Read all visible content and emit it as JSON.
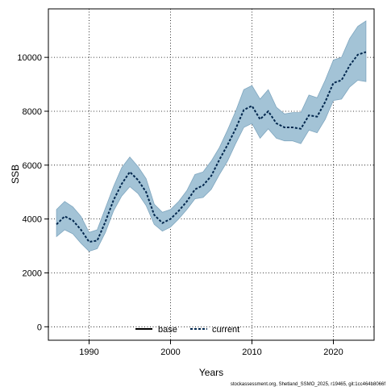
{
  "chart_data": {
    "type": "area",
    "xlabel": "Years",
    "ylabel": "SSB",
    "xlim": [
      1985,
      2025
    ],
    "ylim": [
      -500,
      11800
    ],
    "xticks": [
      1990,
      2000,
      2010,
      2020
    ],
    "yticks": [
      0,
      2000,
      4000,
      6000,
      8000,
      10000
    ],
    "grid": true,
    "legend_position": "bottom-center",
    "legend": [
      {
        "label": "base",
        "style": "solid",
        "color": "#000000"
      },
      {
        "label": "current",
        "style": "dashed",
        "color": "#00264d"
      }
    ],
    "band_color": "#a3c3d6",
    "band_edge_color": "#7fa6bf",
    "years": [
      1986,
      1987,
      1988,
      1989,
      1990,
      1991,
      1992,
      1993,
      1994,
      1995,
      1996,
      1997,
      1998,
      1999,
      2000,
      2001,
      2002,
      2003,
      2004,
      2005,
      2006,
      2007,
      2008,
      2009,
      2010,
      2011,
      2012,
      2013,
      2014,
      2015,
      2016,
      2017,
      2018,
      2019,
      2020,
      2021,
      2022,
      2023,
      2024
    ],
    "series": [
      {
        "name": "current",
        "values": [
          3800,
          4100,
          3950,
          3600,
          3150,
          3200,
          3900,
          4700,
          5300,
          5750,
          5450,
          5000,
          4150,
          3850,
          4000,
          4300,
          4650,
          5100,
          5250,
          5600,
          6200,
          6750,
          7350,
          8050,
          8200,
          7700,
          8000,
          7550,
          7400,
          7400,
          7350,
          7850,
          7800,
          8350,
          9050,
          9150,
          9700,
          10100,
          10200
        ],
        "lower": [
          3350,
          3600,
          3450,
          3100,
          2800,
          2900,
          3500,
          4300,
          4850,
          5200,
          4950,
          4500,
          3800,
          3550,
          3700,
          4000,
          4350,
          4750,
          4800,
          5100,
          5650,
          6150,
          6800,
          7400,
          7550,
          7000,
          7350,
          7000,
          6900,
          6900,
          6800,
          7300,
          7200,
          7700,
          8400,
          8450,
          8900,
          9150,
          9100
        ],
        "upper": [
          4350,
          4650,
          4450,
          4100,
          3500,
          3600,
          4400,
          5200,
          5900,
          6300,
          5950,
          5500,
          4550,
          4250,
          4350,
          4650,
          5050,
          5650,
          5750,
          6150,
          6650,
          7300,
          8000,
          8800,
          8950,
          8450,
          8800,
          8150,
          7900,
          7950,
          7950,
          8600,
          8500,
          9150,
          9900,
          10000,
          10700,
          11150,
          11350
        ]
      }
    ]
  },
  "footnote": "stockassessment.org, Shetland_SSMO_2025, r19465, git:1cc464b8066f"
}
